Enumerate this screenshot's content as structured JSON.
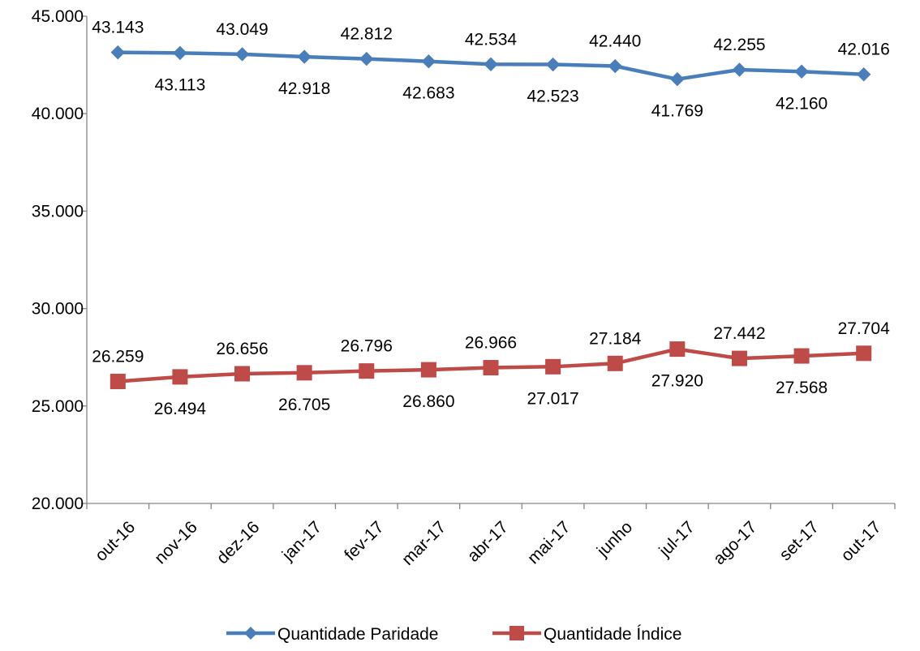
{
  "chart_data": {
    "type": "line",
    "title": "",
    "xlabel": "",
    "ylabel": "",
    "categories": [
      "out-16",
      "nov-16",
      "dez-16",
      "jan-17",
      "fev-17",
      "mar-17",
      "abr-17",
      "mai-17",
      "junho",
      "jul-17",
      "ago-17",
      "set-17",
      "out-17"
    ],
    "ylim": [
      20000,
      45000
    ],
    "y_ticks": [
      20000,
      25000,
      30000,
      35000,
      40000,
      45000
    ],
    "y_tick_labels": [
      "20.000",
      "25.000",
      "30.000",
      "35.000",
      "40.000",
      "45.000"
    ],
    "grid": false,
    "legend_position": "bottom",
    "series": [
      {
        "name": "Quantidade Paridade",
        "color": "#4a7ebb",
        "marker": "diamond",
        "values": [
          43143,
          43113,
          43049,
          42918,
          42812,
          42683,
          42534,
          42523,
          42440,
          41769,
          42255,
          42160,
          42016
        ],
        "labels": [
          "43.143",
          "43.113",
          "43.049",
          "42.918",
          "42.812",
          "42.683",
          "42.534",
          "42.523",
          "42.440",
          "41.769",
          "42.255",
          "42.160",
          "42.016"
        ],
        "label_positions": [
          "above",
          "below",
          "above",
          "below",
          "above",
          "below",
          "above",
          "below",
          "above",
          "below",
          "above",
          "below",
          "above"
        ]
      },
      {
        "name": "Quantidade Índice",
        "color": "#be4b48",
        "marker": "square",
        "values": [
          26259,
          26494,
          26656,
          26705,
          26796,
          26860,
          26966,
          27017,
          27184,
          27920,
          27442,
          27568,
          27704
        ],
        "labels": [
          "26.259",
          "26.494",
          "26.656",
          "26.705",
          "26.796",
          "26.860",
          "26.966",
          "27.017",
          "27.184",
          "27.920",
          "27.442",
          "27.568",
          "27.704"
        ],
        "label_positions": [
          "above",
          "below",
          "above",
          "below",
          "above",
          "below",
          "above",
          "below",
          "above",
          "below",
          "above",
          "below",
          "above"
        ]
      }
    ]
  }
}
